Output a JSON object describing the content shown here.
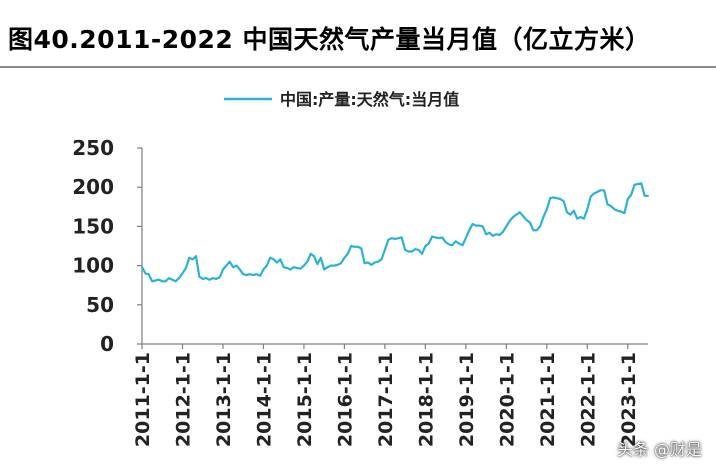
{
  "title": "图40.2011-2022 中国天然气产量当月值（亿立方米）",
  "watermark": "头条 @财是",
  "colors": {
    "line": "#2ab3d4",
    "axis": "#7f7f7f",
    "text": "#222222"
  },
  "chart_data": {
    "type": "line",
    "title": "图40.2011-2022 中国天然气产量当月值（亿立方米）",
    "legend": {
      "position": "top-center"
    },
    "grid": false,
    "ylim": [
      0,
      250
    ],
    "yticks": [
      0,
      50,
      100,
      150,
      200,
      250
    ],
    "xticks": [
      "2011-1-1",
      "2012-1-1",
      "2013-1-1",
      "2014-1-1",
      "2015-1-1",
      "2016-1-1",
      "2017-1-1",
      "2018-1-1",
      "2019-1-1",
      "2020-1-1",
      "2021-1-1",
      "2022-1-1",
      "2023-1-1"
    ],
    "x_start": "2011-01",
    "x_end": "2023-05",
    "series": [
      {
        "name": "中国:产量:天然气:当月值",
        "values": [
          98,
          90,
          89,
          80,
          81,
          82,
          80,
          80,
          84,
          82,
          80,
          84,
          90,
          97,
          110,
          108,
          112,
          86,
          83,
          84,
          82,
          84,
          83,
          85,
          95,
          100,
          105,
          98,
          100,
          95,
          89,
          88,
          89,
          88,
          89,
          87,
          95,
          100,
          110,
          108,
          104,
          108,
          98,
          97,
          95,
          98,
          97,
          96,
          100,
          105,
          115,
          112,
          102,
          110,
          95,
          98,
          100,
          100,
          101,
          103,
          110,
          115,
          125,
          124,
          124,
          122,
          103,
          104,
          101,
          104,
          105,
          108,
          120,
          133,
          135,
          134,
          135,
          136,
          120,
          118,
          118,
          121,
          120,
          115,
          125,
          128,
          137,
          136,
          135,
          136,
          130,
          127,
          126,
          131,
          128,
          126,
          135,
          145,
          153,
          151,
          151,
          150,
          140,
          142,
          138,
          140,
          139,
          143,
          150,
          157,
          162,
          165,
          168,
          163,
          158,
          155,
          145,
          145,
          150,
          162,
          172,
          186,
          187,
          186,
          185,
          182,
          168,
          165,
          170,
          160,
          162,
          160,
          172,
          188,
          192,
          194,
          196,
          196,
          178,
          176,
          172,
          170,
          169,
          167,
          185,
          190,
          203,
          204,
          205,
          189,
          189
        ]
      }
    ]
  }
}
